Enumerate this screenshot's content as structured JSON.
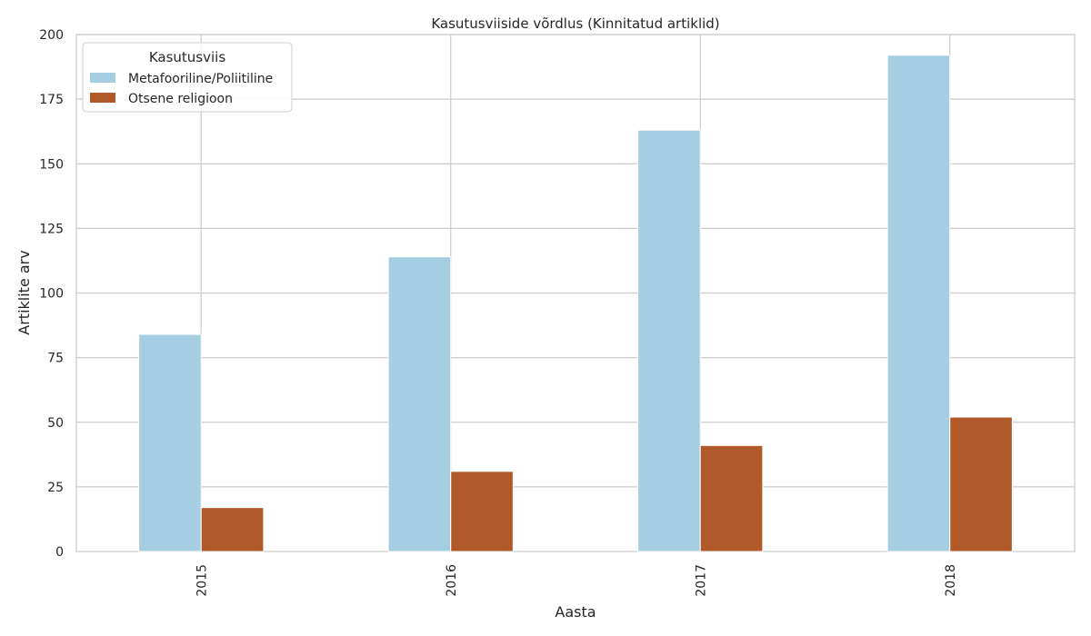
{
  "chart_data": {
    "type": "bar",
    "title": "Kasutusviiside võrdlus (Kinnitatud artiklid)",
    "xlabel": "Aasta",
    "ylabel": "Artiklite arv",
    "categories": [
      "2015",
      "2016",
      "2017",
      "2018"
    ],
    "ylim": [
      0,
      200
    ],
    "yticks": [
      0,
      25,
      50,
      75,
      100,
      125,
      150,
      175,
      200
    ],
    "grid": true,
    "legend": {
      "title": "Kasutusviis",
      "placement": "top-left"
    },
    "series": [
      {
        "name": "Metafooriline/Poliitiline",
        "color": "#a6cee3",
        "values": [
          84,
          114,
          163,
          192
        ]
      },
      {
        "name": "Otsene religioon",
        "color": "#b15928",
        "values": [
          17,
          31,
          41,
          52
        ]
      }
    ]
  }
}
